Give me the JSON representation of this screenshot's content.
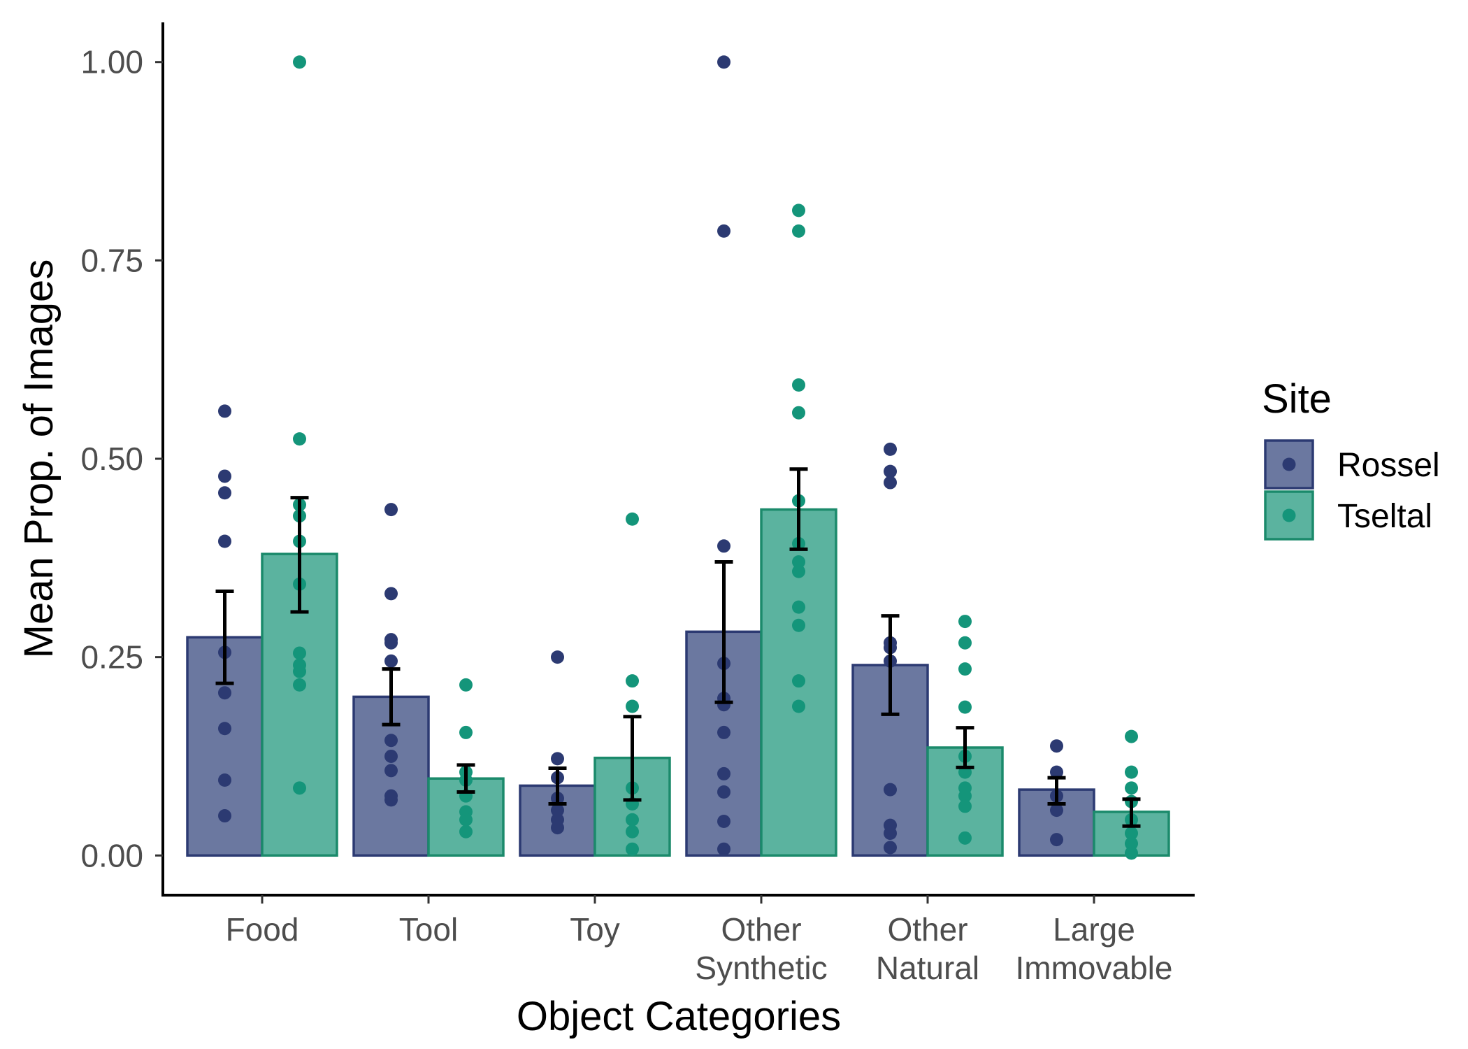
{
  "chart_data": {
    "type": "bar",
    "title": "",
    "xlabel": "Object Categories",
    "ylabel": "Mean Prop. of Images",
    "categories": [
      [
        "Food"
      ],
      [
        "Tool"
      ],
      [
        "Toy"
      ],
      [
        "Other",
        "Synthetic"
      ],
      [
        "Other",
        "Natural"
      ],
      [
        "Large",
        "Immovable"
      ]
    ],
    "ylim": [
      -0.05,
      1.05
    ],
    "yticks": [
      0.0,
      0.25,
      0.5,
      0.75,
      1.0
    ],
    "ytick_labels": [
      "0.00",
      "0.25",
      "0.50",
      "0.75",
      "1.00"
    ],
    "grid": false,
    "legend": {
      "title": "Site",
      "position": "right"
    },
    "series": [
      {
        "name": "Rossel",
        "fill": "#6b78a0",
        "stroke": "#2c3a72",
        "point_color": "#2c3a72",
        "values": [
          0.275,
          0.2,
          0.088,
          0.282,
          0.24,
          0.083
        ],
        "error_low": [
          0.217,
          0.165,
          0.065,
          0.193,
          0.178,
          0.065
        ],
        "error_high": [
          0.333,
          0.235,
          0.11,
          0.37,
          0.302,
          0.098
        ],
        "points": [
          [
            0.56,
            0.478,
            0.457,
            0.396,
            0.256,
            0.205,
            0.16,
            0.095,
            0.05
          ],
          [
            0.436,
            0.33,
            0.272,
            0.268,
            0.245,
            0.145,
            0.125,
            0.107,
            0.075,
            0.07
          ],
          [
            0.25,
            0.122,
            0.098,
            0.072,
            0.057,
            0.045,
            0.035
          ],
          [
            1.0,
            0.787,
            0.39,
            0.242,
            0.198,
            0.19,
            0.155,
            0.103,
            0.08,
            0.043,
            0.008
          ],
          [
            0.512,
            0.484,
            0.47,
            0.268,
            0.262,
            0.245,
            0.083,
            0.038,
            0.028,
            0.01
          ],
          [
            0.138,
            0.105,
            0.075,
            0.057,
            0.02
          ]
        ]
      },
      {
        "name": "Tseltal",
        "fill": "#5bb39f",
        "stroke": "#1b8a6b",
        "point_color": "#14957a",
        "values": [
          0.38,
          0.097,
          0.123,
          0.436,
          0.136,
          0.055
        ],
        "error_low": [
          0.307,
          0.08,
          0.07,
          0.386,
          0.111,
          0.037
        ],
        "error_high": [
          0.451,
          0.114,
          0.175,
          0.487,
          0.161,
          0.071
        ],
        "points": [
          [
            1.0,
            0.525,
            0.442,
            0.428,
            0.396,
            0.342,
            0.255,
            0.24,
            0.232,
            0.215,
            0.085
          ],
          [
            0.215,
            0.155,
            0.105,
            0.095,
            0.075,
            0.055,
            0.045,
            0.03
          ],
          [
            0.424,
            0.22,
            0.188,
            0.085,
            0.065,
            0.045,
            0.03,
            0.008
          ],
          [
            0.813,
            0.787,
            0.593,
            0.558,
            0.447,
            0.393,
            0.37,
            0.358,
            0.313,
            0.29,
            0.22,
            0.188
          ],
          [
            0.295,
            0.268,
            0.235,
            0.187,
            0.125,
            0.105,
            0.085,
            0.075,
            0.062,
            0.022
          ],
          [
            0.15,
            0.105,
            0.085,
            0.068,
            0.045,
            0.028,
            0.015,
            0.003
          ]
        ]
      }
    ]
  }
}
